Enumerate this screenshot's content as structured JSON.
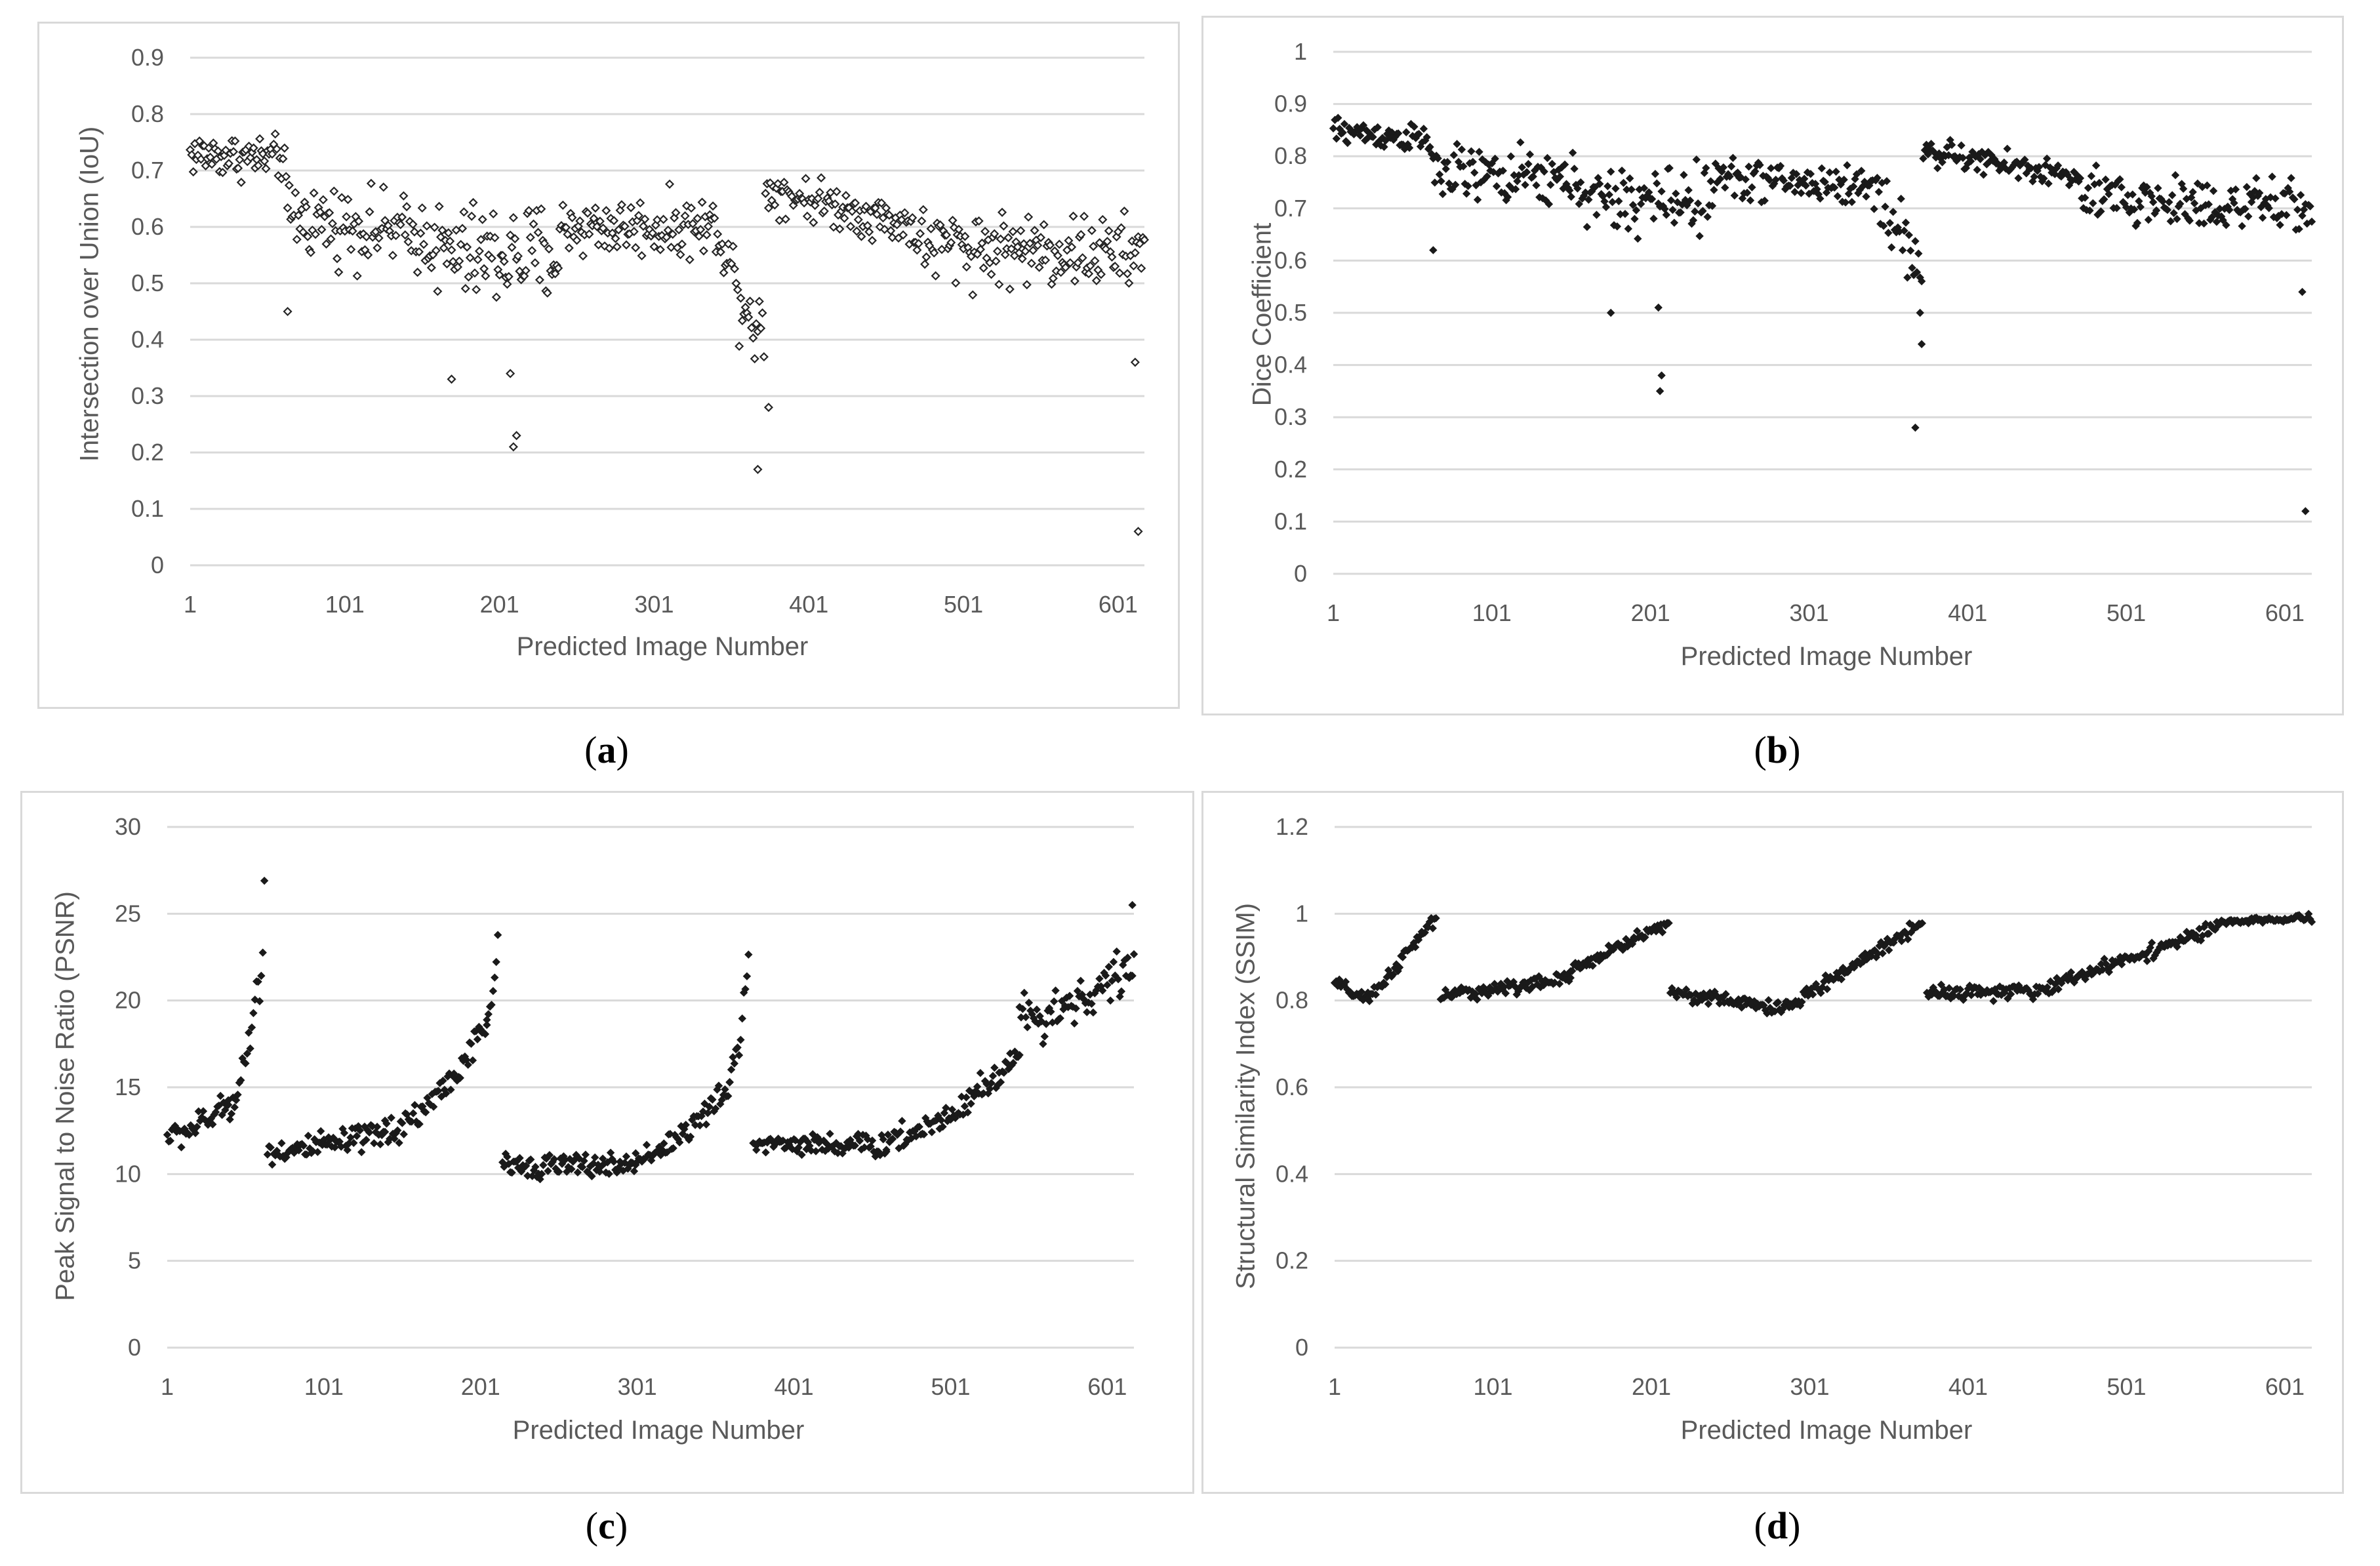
{
  "charts": [
    {
      "id": "a",
      "type": "scatter",
      "caption": "a",
      "ylabel": "Intersection over Union (IoU)",
      "xlabel": "Predicted Image Number",
      "yticks": [
        "0",
        "0.1",
        "0.2",
        "0.3",
        "0.4",
        "0.5",
        "0.6",
        "0.7",
        "0.8",
        "0.9"
      ],
      "ylim": [
        0,
        0.9
      ],
      "xticks": [
        "1",
        "101",
        "201",
        "301",
        "401",
        "501",
        "601"
      ],
      "xlim": [
        1,
        618
      ],
      "marker": "hollow",
      "segments": [
        {
          "x0": 1,
          "x1": 62,
          "y0": 0.73,
          "y1": 0.72,
          "noise": 0.03
        },
        {
          "x0": 63,
          "x1": 160,
          "y0": 0.62,
          "y1": 0.58,
          "noise": 0.05
        },
        {
          "x0": 161,
          "x1": 240,
          "y0": 0.55,
          "y1": 0.55,
          "noise": 0.07
        },
        {
          "x0": 241,
          "x1": 345,
          "y0": 0.6,
          "y1": 0.6,
          "noise": 0.04
        },
        {
          "x0": 346,
          "x1": 372,
          "y0": 0.55,
          "y1": 0.4,
          "noise": 0.06
        },
        {
          "x0": 373,
          "x1": 470,
          "y0": 0.67,
          "y1": 0.6,
          "noise": 0.03
        },
        {
          "x0": 471,
          "x1": 618,
          "y0": 0.57,
          "y1": 0.55,
          "noise": 0.05
        }
      ],
      "outliers": [
        [
          64,
          0.45
        ],
        [
          170,
          0.33
        ],
        [
          208,
          0.34
        ],
        [
          210,
          0.21
        ],
        [
          212,
          0.23
        ],
        [
          368,
          0.17
        ],
        [
          375,
          0.28
        ],
        [
          612,
          0.36
        ],
        [
          614,
          0.06
        ]
      ]
    },
    {
      "id": "b",
      "type": "scatter",
      "caption": "b",
      "ylabel": "Dice Coefficient",
      "xlabel": "Predicted Image Number",
      "yticks": [
        "0",
        "0.1",
        "0.2",
        "0.3",
        "0.4",
        "0.5",
        "0.6",
        "0.7",
        "0.8",
        "0.9",
        "1"
      ],
      "ylim": [
        0,
        1
      ],
      "xticks": [
        "1",
        "101",
        "201",
        "301",
        "401",
        "501",
        "601"
      ],
      "xlim": [
        1,
        618
      ],
      "marker": "filled",
      "segments": [
        {
          "x0": 1,
          "x1": 62,
          "y0": 0.85,
          "y1": 0.83,
          "noise": 0.02
        },
        {
          "x0": 63,
          "x1": 160,
          "y0": 0.77,
          "y1": 0.75,
          "noise": 0.04
        },
        {
          "x0": 161,
          "x1": 240,
          "y0": 0.71,
          "y1": 0.72,
          "noise": 0.05
        },
        {
          "x0": 241,
          "x1": 345,
          "y0": 0.76,
          "y1": 0.74,
          "noise": 0.03
        },
        {
          "x0": 346,
          "x1": 372,
          "y0": 0.72,
          "y1": 0.58,
          "noise": 0.05
        },
        {
          "x0": 373,
          "x1": 470,
          "y0": 0.81,
          "y1": 0.76,
          "noise": 0.02
        },
        {
          "x0": 471,
          "x1": 618,
          "y0": 0.72,
          "y1": 0.7,
          "noise": 0.04
        }
      ],
      "outliers": [
        [
          64,
          0.62
        ],
        [
          176,
          0.5
        ],
        [
          206,
          0.51
        ],
        [
          207,
          0.35
        ],
        [
          208,
          0.38
        ],
        [
          368,
          0.28
        ],
        [
          371,
          0.5
        ],
        [
          372,
          0.44
        ],
        [
          612,
          0.54
        ],
        [
          614,
          0.12
        ]
      ]
    },
    {
      "id": "c",
      "type": "scatter",
      "caption": "c",
      "ylabel": "Peak Signal to Noise Ratio (PSNR)",
      "xlabel": "Predicted Image Number",
      "yticks": [
        "0",
        "5",
        "10",
        "15",
        "20",
        "25",
        "30"
      ],
      "ylim": [
        0,
        30
      ],
      "xticks": [
        "1",
        "101",
        "201",
        "301",
        "401",
        "501",
        "601"
      ],
      "xlim": [
        1,
        618
      ],
      "marker": "filled",
      "segments": [
        {
          "x0": 1,
          "x1": 40,
          "y0": 12.2,
          "y1": 14.0,
          "noise": 0.6
        },
        {
          "x0": 40,
          "x1": 62,
          "y0": 14.0,
          "y1": 22.5,
          "noise": 0.8
        },
        {
          "x0": 65,
          "x1": 140,
          "y0": 11.3,
          "y1": 12.3,
          "noise": 0.6
        },
        {
          "x0": 140,
          "x1": 205,
          "y0": 12.5,
          "y1": 18.5,
          "noise": 0.7
        },
        {
          "x0": 205,
          "x1": 212,
          "y0": 19.0,
          "y1": 23.2,
          "noise": 0.5
        },
        {
          "x0": 215,
          "x1": 300,
          "y0": 10.5,
          "y1": 10.5,
          "noise": 0.5
        },
        {
          "x0": 300,
          "x1": 360,
          "y0": 11.0,
          "y1": 15.0,
          "noise": 0.6
        },
        {
          "x0": 360,
          "x1": 372,
          "y0": 15.5,
          "y1": 22.5,
          "noise": 0.7
        },
        {
          "x0": 375,
          "x1": 460,
          "y0": 11.8,
          "y1": 11.6,
          "noise": 0.5
        },
        {
          "x0": 460,
          "x1": 545,
          "y0": 12.0,
          "y1": 17.0,
          "noise": 0.7
        },
        {
          "x0": 545,
          "x1": 618,
          "y0": 19.0,
          "y1": 22.0,
          "noise": 1.0
        }
      ],
      "outliers": [
        [
          63,
          26.9
        ],
        [
          617,
          25.5
        ]
      ]
    },
    {
      "id": "d",
      "type": "scatter",
      "caption": "d",
      "ylabel": "Structural Similarity Index (SSIM)",
      "xlabel": "Predicted Image Number",
      "yticks": [
        "0",
        "0.2",
        "0.4",
        "0.6",
        "0.8",
        "1",
        "1.2"
      ],
      "ylim": [
        0,
        1.2
      ],
      "xticks": [
        "1",
        "101",
        "201",
        "301",
        "401",
        "501",
        "601"
      ],
      "xlim": [
        1,
        618
      ],
      "marker": "filled",
      "segments": [
        {
          "x0": 1,
          "x1": 22,
          "y0": 0.84,
          "y1": 0.8,
          "noise": 0.012
        },
        {
          "x0": 22,
          "x1": 65,
          "y0": 0.8,
          "y1": 0.99,
          "noise": 0.012
        },
        {
          "x0": 68,
          "x1": 150,
          "y0": 0.81,
          "y1": 0.85,
          "noise": 0.012
        },
        {
          "x0": 150,
          "x1": 212,
          "y0": 0.87,
          "y1": 0.98,
          "noise": 0.012
        },
        {
          "x0": 213,
          "x1": 285,
          "y0": 0.82,
          "y1": 0.78,
          "noise": 0.012
        },
        {
          "x0": 285,
          "x1": 372,
          "y0": 0.78,
          "y1": 0.98,
          "noise": 0.012
        },
        {
          "x0": 375,
          "x1": 450,
          "y0": 0.82,
          "y1": 0.82,
          "noise": 0.012
        },
        {
          "x0": 450,
          "x1": 560,
          "y0": 0.83,
          "y1": 0.97,
          "noise": 0.012
        },
        {
          "x0": 560,
          "x1": 618,
          "y0": 0.98,
          "y1": 0.99,
          "noise": 0.006
        }
      ],
      "outliers": []
    }
  ]
}
